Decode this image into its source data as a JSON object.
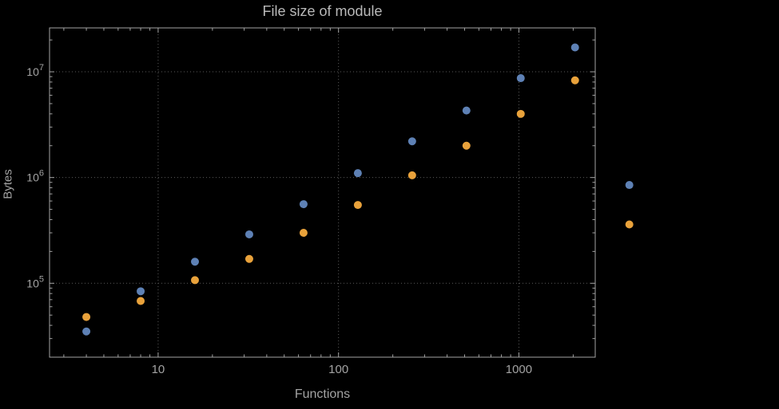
{
  "chart_data": {
    "type": "scatter",
    "title": "File size of module",
    "xlabel": "Functions",
    "ylabel": "Bytes",
    "x_scale": "log",
    "y_scale": "log",
    "grid": true,
    "legend": "none",
    "xlim": [
      2.5,
      2650
    ],
    "ylim": [
      20000,
      26000000
    ],
    "x": [
      4,
      8,
      16,
      32,
      64,
      128,
      256,
      512,
      1024,
      2048,
      4096
    ],
    "series": [
      {
        "name": "series-blue",
        "color": "#5e81b5",
        "values": [
          35000,
          84000,
          160000,
          290000,
          560000,
          1100000,
          2200000,
          4300000,
          8700000,
          17000000,
          850000
        ]
      },
      {
        "name": "series-orange",
        "color": "#e9a23b",
        "values": [
          48000,
          68000,
          107000,
          170000,
          300000,
          550000,
          1050000,
          2000000,
          4000000,
          8300000,
          360000
        ]
      }
    ],
    "x_ticks": [
      {
        "value": 10,
        "label": "10"
      },
      {
        "value": 100,
        "label": "100"
      },
      {
        "value": 1000,
        "label": "1000"
      }
    ],
    "y_ticks": [
      {
        "value": 100000,
        "mantissa": "10",
        "exponent": "5"
      },
      {
        "value": 1000000,
        "mantissa": "10",
        "exponent": "6"
      },
      {
        "value": 10000000,
        "mantissa": "10",
        "exponent": "7"
      }
    ]
  },
  "colors": {
    "background": "#000000",
    "frame": "#a3a3a3",
    "grid": "#5a5a5a",
    "title": "#b9b9b9",
    "labels": "#a3a3a3",
    "tick_labels": "#a3a3a3"
  }
}
